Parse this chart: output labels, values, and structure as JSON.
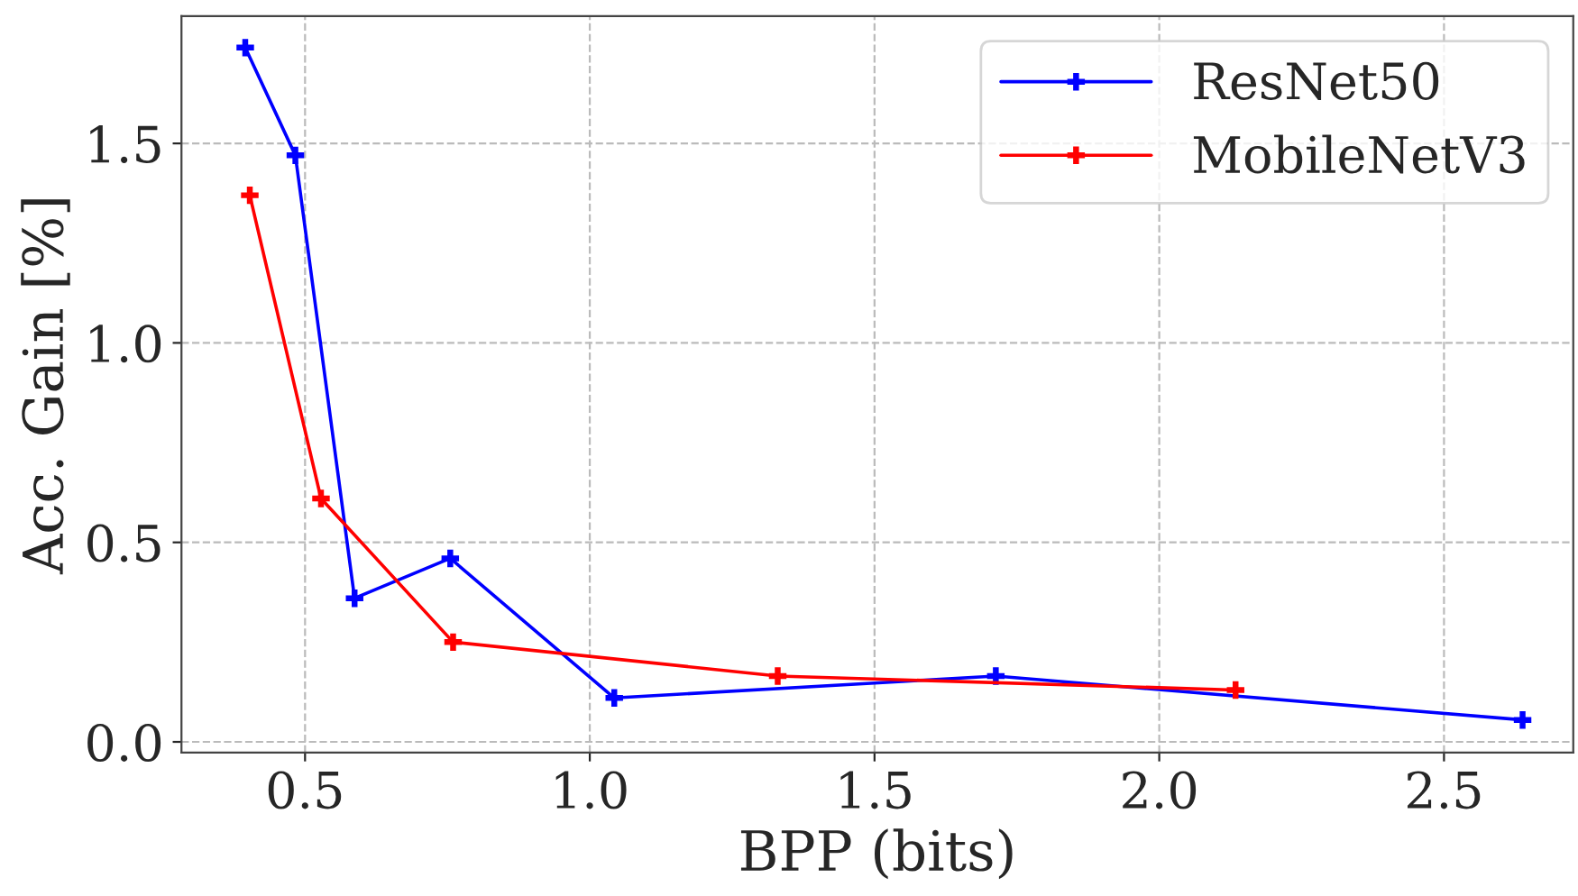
{
  "chart_data": {
    "type": "line",
    "xlabel": "BPP (bits)",
    "ylabel": "Acc. Gain [%]",
    "xlim": [
      0.283,
      2.727
    ],
    "ylim": [
      -0.027,
      1.819
    ],
    "xticks": [
      {
        "value": 0.5,
        "label": "0.5"
      },
      {
        "value": 1.0,
        "label": "1.0"
      },
      {
        "value": 1.5,
        "label": "1.5"
      },
      {
        "value": 2.0,
        "label": "2.0"
      },
      {
        "value": 2.5,
        "label": "2.5"
      }
    ],
    "yticks": [
      {
        "value": 0.0,
        "label": "0.0"
      },
      {
        "value": 0.5,
        "label": "0.5"
      },
      {
        "value": 1.0,
        "label": "1.0"
      },
      {
        "value": 1.5,
        "label": "1.5"
      }
    ],
    "grid": true,
    "legend": "top right",
    "marker": "cross",
    "line_style": "solid",
    "series": [
      {
        "name": "ResNet50",
        "color": "#0000ff",
        "x": [
          0.395,
          0.483,
          0.587,
          0.755,
          1.043,
          1.713,
          2.638
        ],
        "values": [
          1.74,
          1.47,
          0.36,
          0.46,
          0.11,
          0.165,
          0.055
        ]
      },
      {
        "name": "MobileNetV3",
        "color": "#ff0000",
        "x": [
          0.403,
          0.528,
          0.76,
          1.33,
          2.134
        ],
        "values": [
          1.37,
          0.61,
          0.25,
          0.165,
          0.13
        ]
      }
    ]
  }
}
